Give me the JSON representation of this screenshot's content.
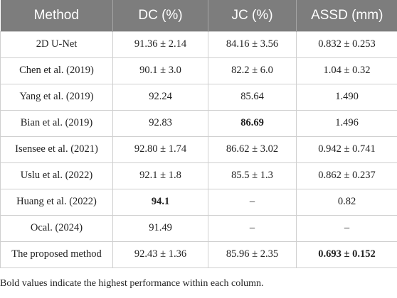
{
  "table": {
    "headers": [
      "Method",
      "DC (%)",
      "JC (%)",
      "ASSD (mm)"
    ],
    "rows": [
      {
        "method": "2D U-Net",
        "dc": "91.36 ± 2.14",
        "jc": "84.16 ± 3.56",
        "assd": "0.832 ± 0.253",
        "bold": []
      },
      {
        "method": "Chen et al. (2019)",
        "dc": "90.1 ± 3.0",
        "jc": "82.2 ± 6.0",
        "assd": "1.04 ± 0.32",
        "bold": []
      },
      {
        "method": "Yang et al. (2019)",
        "dc": "92.24",
        "jc": "85.64",
        "assd": "1.490",
        "bold": []
      },
      {
        "method": "Bian et al. (2019)",
        "dc": "92.83",
        "jc": "86.69",
        "assd": "1.496",
        "bold": [
          "jc"
        ]
      },
      {
        "method": "Isensee et al. (2021)",
        "dc": "92.80 ± 1.74",
        "jc": "86.62 ± 3.02",
        "assd": "0.942 ± 0.741",
        "bold": []
      },
      {
        "method": "Uslu et al. (2022)",
        "dc": "92.1 ± 1.8",
        "jc": "85.5 ± 1.3",
        "assd": "0.862 ± 0.237",
        "bold": []
      },
      {
        "method": "Huang et al. (2022)",
        "dc": "94.1",
        "jc": "–",
        "assd": "0.82",
        "bold": [
          "dc"
        ]
      },
      {
        "method": "Ocal. (2024)",
        "dc": "91.49",
        "jc": "–",
        "assd": "–",
        "bold": []
      },
      {
        "method": "The proposed method",
        "dc": "92.43 ± 1.36",
        "jc": "85.96 ± 2.35",
        "assd": "0.693 ± 0.152",
        "bold": [
          "assd"
        ]
      }
    ]
  },
  "footnote": "Bold values indicate the highest performance within each column."
}
